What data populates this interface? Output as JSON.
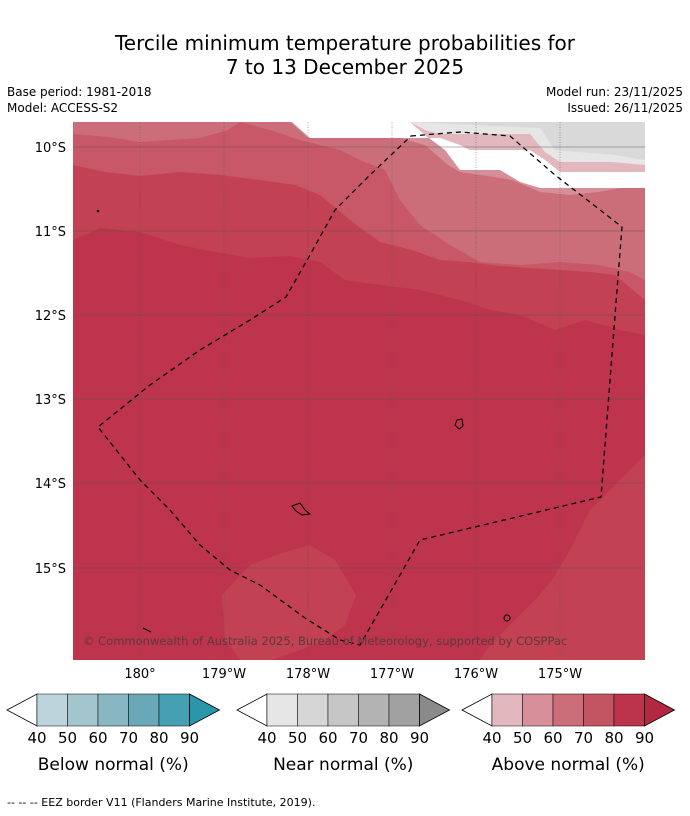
{
  "title_line1": "Tercile minimum temperature probabilities for",
  "title_line2": "7 to 13 December 2025",
  "base_period": "Base period: 1981-2018",
  "model": "Model: ACCESS-S2",
  "model_run": "Model run: 23/11/2025",
  "issued": "Issued: 26/11/2025",
  "lat_labels": [
    "10°S",
    "11°S",
    "12°S",
    "13°S",
    "14°S",
    "15°S"
  ],
  "lon_labels": [
    "180°",
    "179°W",
    "178°W",
    "177°W",
    "176°W",
    "175°W"
  ],
  "copyright": "© Commonwealth of Australia 2025, Bureau of Meteorology, supported by COSPPac",
  "colorbars": [
    {
      "name": "below",
      "label": "Below normal (%)",
      "ticks": [
        "40",
        "50",
        "60",
        "70",
        "80",
        "90"
      ],
      "colors": [
        "#bcd5dc",
        "#a3c6ce",
        "#88b7c3",
        "#6aa8b7",
        "#45a0b3",
        "#2b95ab"
      ]
    },
    {
      "name": "near",
      "label": "Near normal (%)",
      "ticks": [
        "40",
        "50",
        "60",
        "70",
        "80",
        "90"
      ],
      "colors": [
        "#e6e6e6",
        "#d6d6d6",
        "#c6c6c6",
        "#b3b3b3",
        "#a1a1a1",
        "#8a8a8a"
      ]
    },
    {
      "name": "above",
      "label": "Above normal (%)",
      "ticks": [
        "40",
        "50",
        "60",
        "70",
        "80",
        "90"
      ],
      "colors": [
        "#e2b8be",
        "#d79099",
        "#cc6e79",
        "#c35562",
        "#bc344c",
        "#b22840"
      ]
    }
  ],
  "footnote": "-- -- -- EEZ border V11 (Flanders Marine Institute, 2019).",
  "colors": {
    "a90": "#bd344c",
    "a80": "#c24152",
    "a70": "#c85867",
    "a60": "#cc6e79",
    "a50": "#d58f98",
    "a40": "#e2b8be",
    "n50": "#d9d9d9",
    "n40": "#e6e6e6"
  }
}
